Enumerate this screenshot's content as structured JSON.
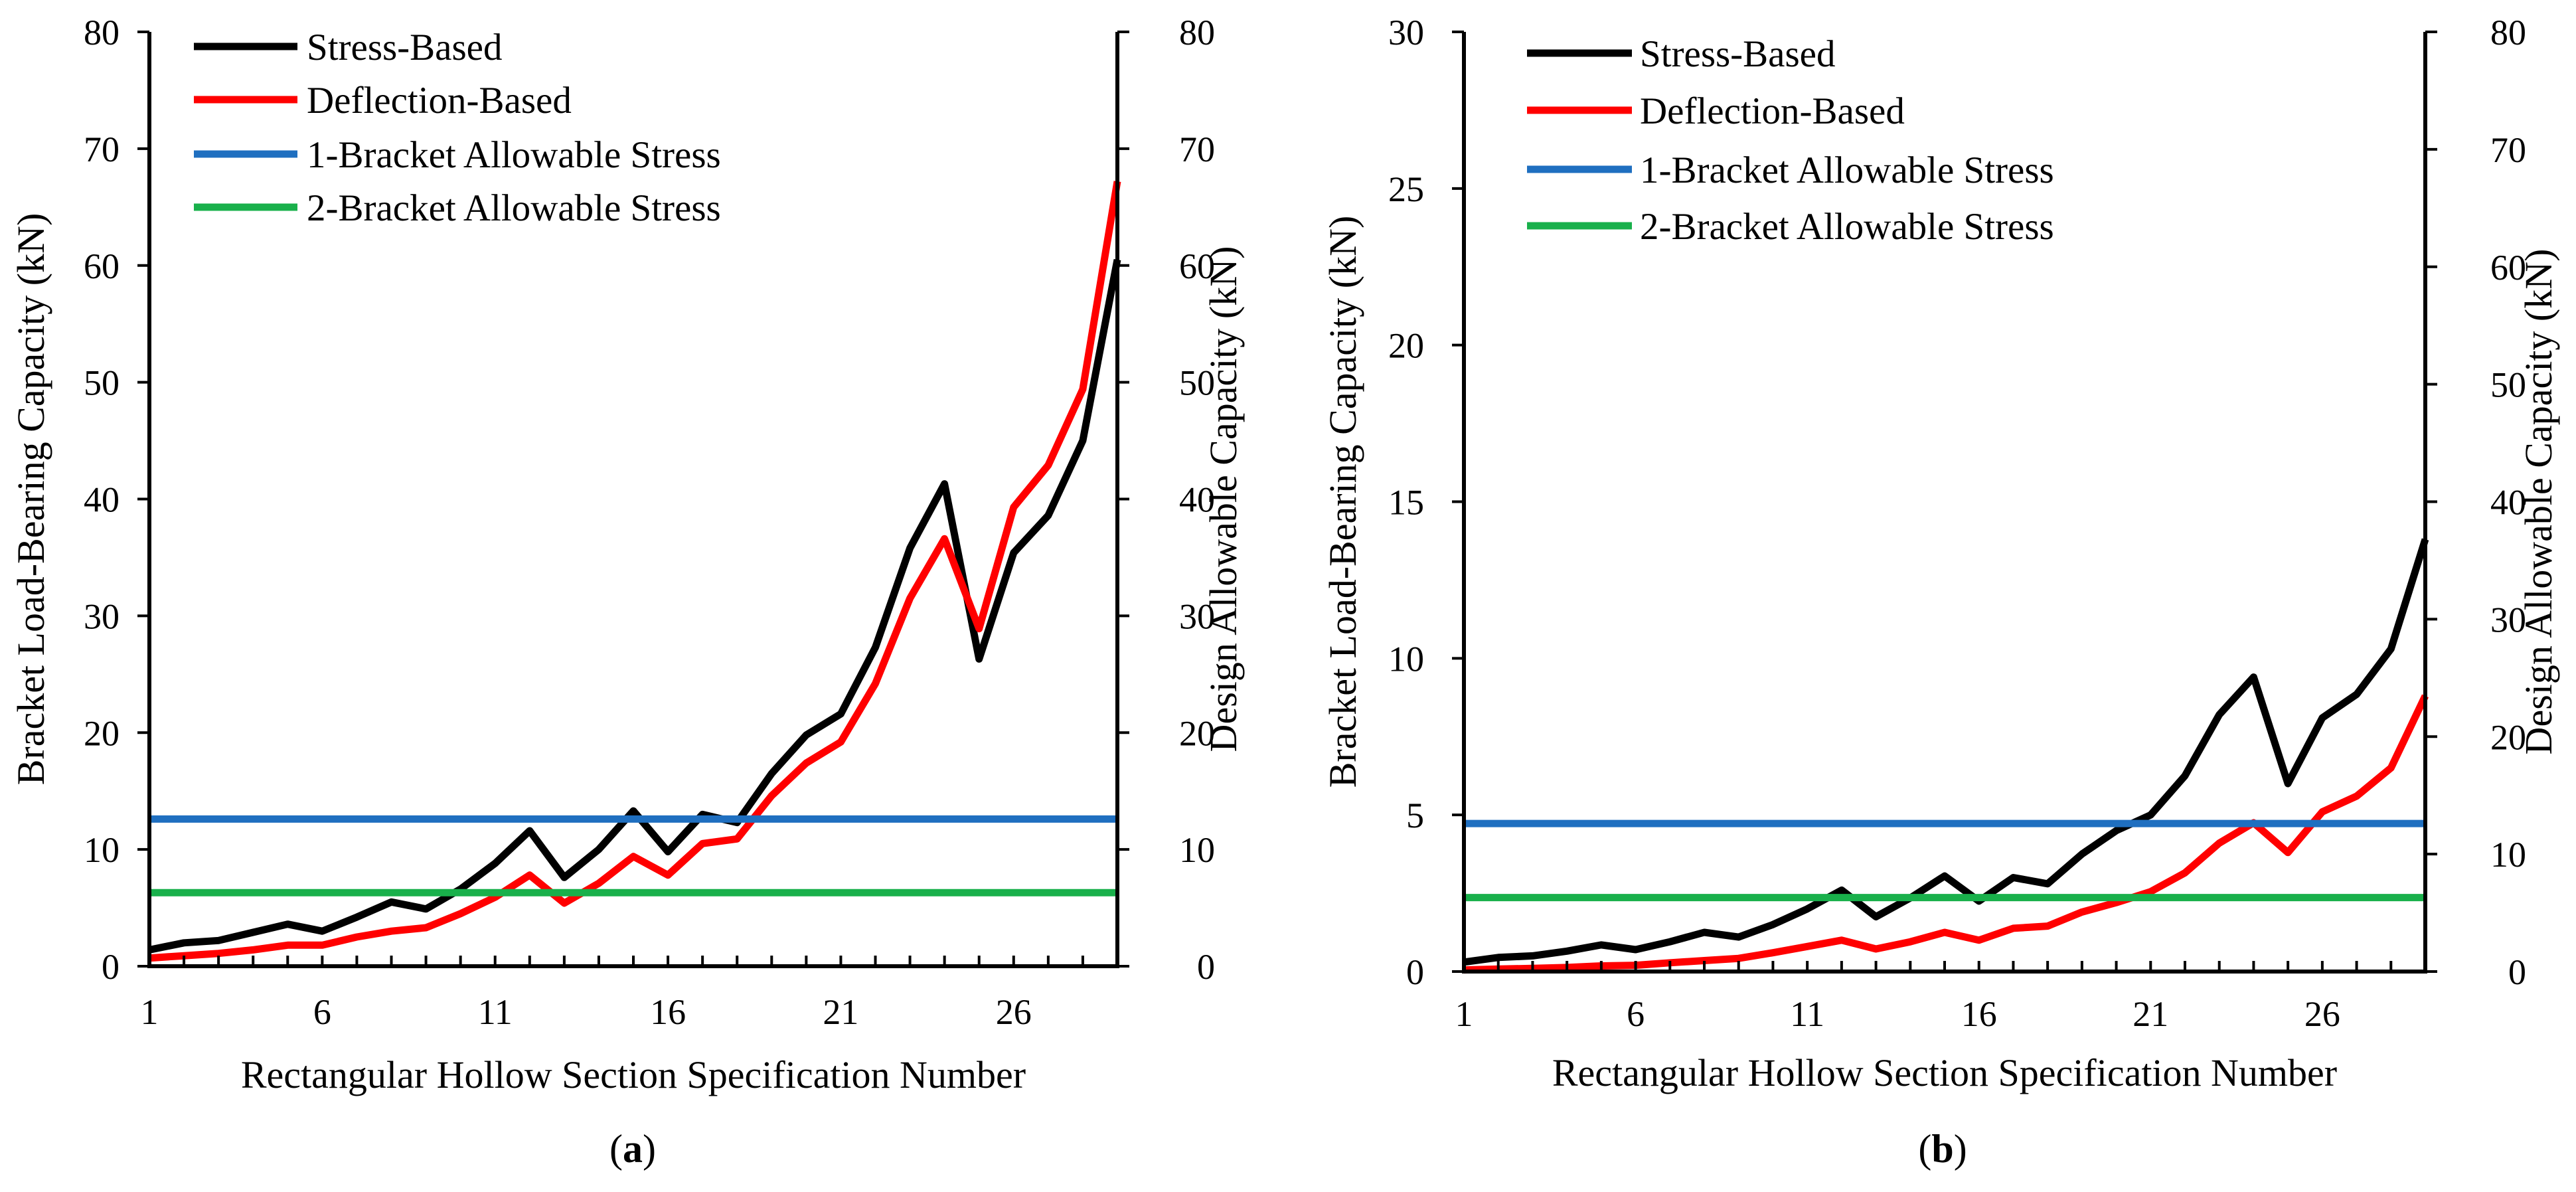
{
  "chart_data": [
    {
      "panel_label": "a",
      "type": "line",
      "xlabel": "Rectangular Hollow Section Specification Number",
      "ylabel": "Bracket Load-Bearing Capacity (kN)",
      "y2label": "Design Allowable Capacity (kN)",
      "xlim": [
        1,
        29
      ],
      "ylim": [
        0,
        80
      ],
      "y2lim": [
        0,
        80
      ],
      "xticks": [
        "1",
        "6",
        "11",
        "16",
        "21",
        "26"
      ],
      "yticks": [
        "0",
        "10",
        "20",
        "30",
        "40",
        "50",
        "60",
        "70",
        "80"
      ],
      "y2ticks": [
        "0",
        "10",
        "20",
        "30",
        "40",
        "50",
        "60",
        "70",
        "80"
      ],
      "legend_position": "top-left",
      "x": [
        1,
        2,
        3,
        4,
        5,
        6,
        7,
        8,
        9,
        10,
        11,
        12,
        13,
        14,
        15,
        16,
        17,
        18,
        19,
        20,
        21,
        22,
        23,
        24,
        25,
        26,
        27,
        28,
        29
      ],
      "series": [
        {
          "name": "Stress-Based",
          "color": "#000000",
          "axis": "left",
          "values": [
            1.4,
            2.0,
            2.2,
            2.9,
            3.6,
            3.0,
            4.2,
            5.5,
            4.9,
            6.6,
            8.8,
            11.6,
            7.6,
            10.0,
            13.3,
            9.8,
            13.0,
            12.3,
            16.5,
            19.8,
            21.6,
            27.3,
            35.8,
            41.3,
            26.3,
            35.4,
            38.6,
            45.0,
            60.5
          ]
        },
        {
          "name": "Deflection-Based",
          "color": "#ff0000",
          "axis": "left",
          "values": [
            0.7,
            0.9,
            1.1,
            1.4,
            1.8,
            1.8,
            2.5,
            3.0,
            3.3,
            4.5,
            5.9,
            7.8,
            5.4,
            7.1,
            9.4,
            7.8,
            10.5,
            10.9,
            14.6,
            17.4,
            19.2,
            24.2,
            31.5,
            36.6,
            28.9,
            39.3,
            42.9,
            49.4,
            67.2
          ]
        },
        {
          "name": "1-Bracket Allowable Stress",
          "color": "#1f6fc0",
          "axis": "right",
          "values": [
            12.6,
            12.6,
            12.6,
            12.6,
            12.6,
            12.6,
            12.6,
            12.6,
            12.6,
            12.6,
            12.6,
            12.6,
            12.6,
            12.6,
            12.6,
            12.6,
            12.6,
            12.6,
            12.6,
            12.6,
            12.6,
            12.6,
            12.6,
            12.6,
            12.6,
            12.6,
            12.6,
            12.6,
            12.6
          ]
        },
        {
          "name": "2-Bracket Allowable Stress",
          "color": "#19b04b",
          "axis": "right",
          "values": [
            6.3,
            6.3,
            6.3,
            6.3,
            6.3,
            6.3,
            6.3,
            6.3,
            6.3,
            6.3,
            6.3,
            6.3,
            6.3,
            6.3,
            6.3,
            6.3,
            6.3,
            6.3,
            6.3,
            6.3,
            6.3,
            6.3,
            6.3,
            6.3,
            6.3,
            6.3,
            6.3,
            6.3,
            6.3
          ]
        }
      ]
    },
    {
      "panel_label": "b",
      "type": "line",
      "xlabel": "Rectangular Hollow Section Specification Number",
      "ylabel": "Bracket Load-Bearing Capacity (kN)",
      "y2label": "Design Allowable Capacity (kN)",
      "xlim": [
        1,
        29
      ],
      "ylim": [
        0,
        30
      ],
      "y2lim": [
        0,
        80
      ],
      "xticks": [
        "1",
        "6",
        "11",
        "16",
        "21",
        "26"
      ],
      "yticks": [
        "0",
        "5",
        "10",
        "15",
        "20",
        "25",
        "30"
      ],
      "y2ticks": [
        "0",
        "10",
        "20",
        "30",
        "40",
        "50",
        "60",
        "70",
        "80"
      ],
      "legend_position": "top-left",
      "x": [
        1,
        2,
        3,
        4,
        5,
        6,
        7,
        8,
        9,
        10,
        11,
        12,
        13,
        14,
        15,
        16,
        17,
        18,
        19,
        20,
        21,
        22,
        23,
        24,
        25,
        26,
        27,
        28,
        29
      ],
      "series": [
        {
          "name": "Stress-Based",
          "color": "#000000",
          "axis": "left",
          "values": [
            0.3,
            0.45,
            0.5,
            0.65,
            0.85,
            0.7,
            0.95,
            1.25,
            1.1,
            1.5,
            2.0,
            2.6,
            1.75,
            2.35,
            3.05,
            2.25,
            3.0,
            2.8,
            3.75,
            4.5,
            5.0,
            6.25,
            8.2,
            9.4,
            6.0,
            8.1,
            8.85,
            10.3,
            13.8
          ]
        },
        {
          "name": "Deflection-Based",
          "color": "#ff0000",
          "axis": "left",
          "values": [
            0.05,
            0.08,
            0.1,
            0.13,
            0.18,
            0.2,
            0.28,
            0.35,
            0.42,
            0.6,
            0.8,
            1.0,
            0.72,
            0.95,
            1.25,
            1.0,
            1.38,
            1.45,
            1.9,
            2.2,
            2.55,
            3.15,
            4.1,
            4.75,
            3.8,
            5.1,
            5.6,
            6.5,
            8.8
          ]
        },
        {
          "name": "1-Bracket Allowable Stress",
          "color": "#1f6fc0",
          "axis": "right",
          "values": [
            12.6,
            12.6,
            12.6,
            12.6,
            12.6,
            12.6,
            12.6,
            12.6,
            12.6,
            12.6,
            12.6,
            12.6,
            12.6,
            12.6,
            12.6,
            12.6,
            12.6,
            12.6,
            12.6,
            12.6,
            12.6,
            12.6,
            12.6,
            12.6,
            12.6,
            12.6,
            12.6,
            12.6,
            12.6
          ]
        },
        {
          "name": "2-Bracket Allowable Stress",
          "color": "#19b04b",
          "axis": "right",
          "values": [
            6.3,
            6.3,
            6.3,
            6.3,
            6.3,
            6.3,
            6.3,
            6.3,
            6.3,
            6.3,
            6.3,
            6.3,
            6.3,
            6.3,
            6.3,
            6.3,
            6.3,
            6.3,
            6.3,
            6.3,
            6.3,
            6.3,
            6.3,
            6.3,
            6.3,
            6.3,
            6.3,
            6.3,
            6.3
          ]
        }
      ]
    }
  ]
}
